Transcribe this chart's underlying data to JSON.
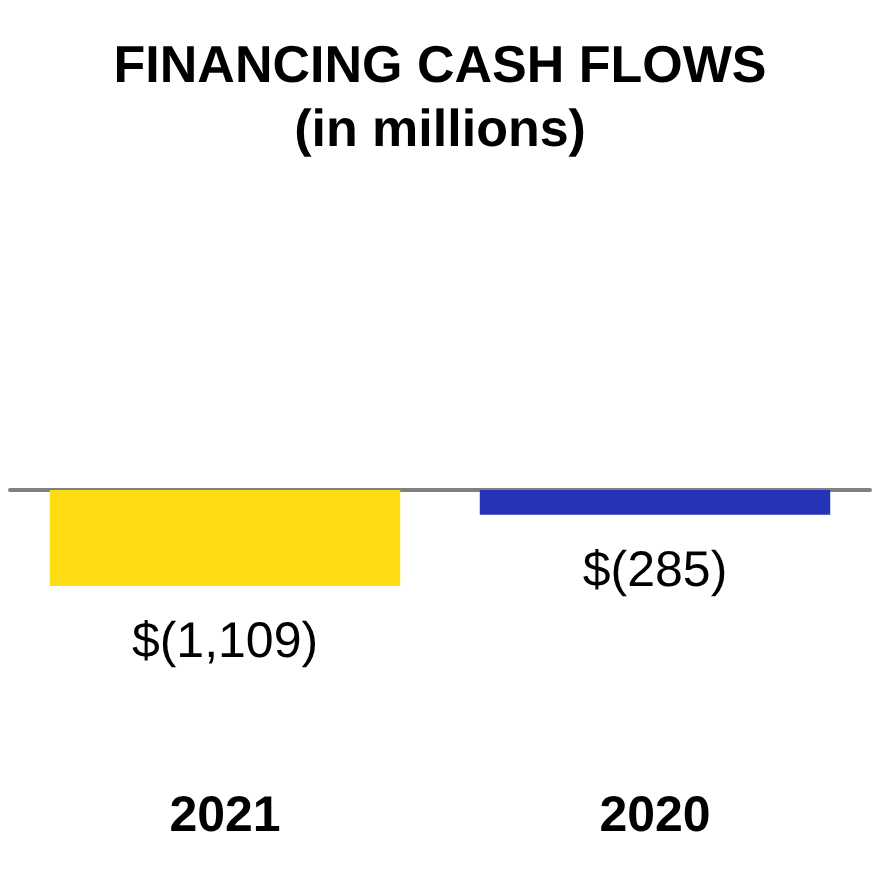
{
  "chart_data": {
    "type": "bar",
    "title": "FINANCING CASH FLOWS",
    "subtitle": "(in millions)",
    "categories": [
      "2021",
      "2020"
    ],
    "values": [
      -1109,
      -285
    ],
    "colors": [
      "#fddc14",
      "#2533b8"
    ],
    "value_labels": [
      "$(1,109)",
      "$(285)"
    ]
  }
}
